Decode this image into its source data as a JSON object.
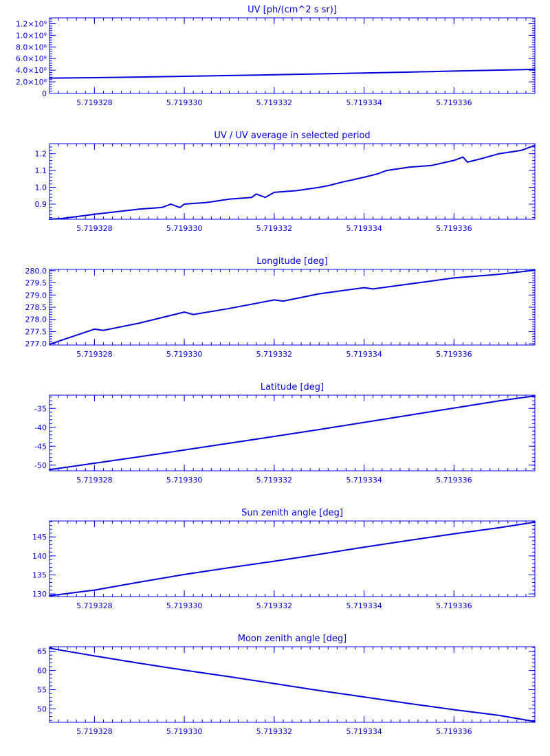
{
  "colors": {
    "ink": "#0000dd",
    "background": "#ffffff"
  },
  "chart_data": [
    {
      "type": "line",
      "title": "UV [ph/(cm^2 s sr)]",
      "xlim": [
        5.719327,
        5.7193378
      ],
      "ylim": [
        0,
        1300000000.0
      ],
      "xticks": [
        5.719328,
        5.71933,
        5.719332,
        5.719334,
        5.719336
      ],
      "xtick_labels": [
        "5.719328",
        "5.719330",
        "5.719332",
        "5.719334",
        "5.719336"
      ],
      "yticks": [
        0,
        200000000,
        400000000,
        600000000,
        800000000,
        1000000000,
        1200000000
      ],
      "ytick_labels": [
        "0",
        "2.0×10⁸",
        "4.0×10⁸",
        "6.0×10⁸",
        "8.0×10⁸",
        "1.0×10⁹",
        "1.2×10⁹"
      ],
      "x": [
        5.719327,
        5.719328,
        5.719329,
        5.71933,
        5.719331,
        5.719332,
        5.719333,
        5.719334,
        5.719335,
        5.719336,
        5.7193378
      ],
      "y": [
        265000000,
        272000000,
        283000000,
        295000000,
        308000000,
        322000000,
        337000000,
        352000000,
        368000000,
        385000000,
        415000000
      ]
    },
    {
      "type": "line",
      "title": "UV / UV average in selected period",
      "xlim": [
        5.719327,
        5.7193378
      ],
      "ylim": [
        0.81,
        1.26
      ],
      "xticks": [
        5.719328,
        5.71933,
        5.719332,
        5.719334,
        5.719336
      ],
      "xtick_labels": [
        "5.719328",
        "5.719330",
        "5.719332",
        "5.719334",
        "5.719336"
      ],
      "yticks": [
        0.9,
        1.0,
        1.1,
        1.2
      ],
      "ytick_labels": [
        "0.9",
        "1.0",
        "1.1",
        "1.2"
      ],
      "x": [
        5.719327,
        5.7193273,
        5.719328,
        5.7193285,
        5.719329,
        5.7193295,
        5.7193297,
        5.7193299,
        5.71933,
        5.7193305,
        5.719331,
        5.7193315,
        5.7193316,
        5.7193318,
        5.719332,
        5.7193325,
        5.719333,
        5.7193332,
        5.7193335,
        5.719334,
        5.7193343,
        5.7193345,
        5.719335,
        5.7193355,
        5.719336,
        5.7193362,
        5.7193363,
        5.7193366,
        5.719337,
        5.7193375,
        5.7193378
      ],
      "y": [
        0.81,
        0.815,
        0.84,
        0.855,
        0.87,
        0.88,
        0.9,
        0.88,
        0.9,
        0.91,
        0.93,
        0.94,
        0.96,
        0.94,
        0.97,
        0.98,
        1.0,
        1.01,
        1.03,
        1.06,
        1.08,
        1.1,
        1.12,
        1.13,
        1.16,
        1.18,
        1.15,
        1.17,
        1.2,
        1.22,
        1.25
      ]
    },
    {
      "type": "line",
      "title": "Longitude [deg]",
      "xlim": [
        5.719327,
        5.7193378
      ],
      "ylim": [
        276.95,
        280.05
      ],
      "xticks": [
        5.719328,
        5.71933,
        5.719332,
        5.719334,
        5.719336
      ],
      "xtick_labels": [
        "5.719328",
        "5.719330",
        "5.719332",
        "5.719334",
        "5.719336"
      ],
      "yticks": [
        277.0,
        277.5,
        278.0,
        278.5,
        279.0,
        279.5,
        280.0
      ],
      "ytick_labels": [
        "277.0",
        "277.5",
        "278.0",
        "278.5",
        "279.0",
        "279.5",
        "280.0"
      ],
      "x": [
        5.719327,
        5.719328,
        5.7193282,
        5.719329,
        5.71933,
        5.7193302,
        5.719331,
        5.719332,
        5.7193322,
        5.719333,
        5.719334,
        5.7193342,
        5.719335,
        5.719336,
        5.719337,
        5.7193378
      ],
      "y": [
        276.98,
        277.6,
        277.55,
        277.85,
        278.3,
        278.2,
        278.45,
        278.8,
        278.75,
        279.05,
        279.3,
        279.25,
        279.45,
        279.7,
        279.85,
        280.02
      ]
    },
    {
      "type": "line",
      "title": "Latitude [deg]",
      "xlim": [
        5.719327,
        5.7193378
      ],
      "ylim": [
        -51.5,
        -31.5
      ],
      "xticks": [
        5.719328,
        5.71933,
        5.719332,
        5.719334,
        5.719336
      ],
      "xtick_labels": [
        "5.719328",
        "5.719330",
        "5.719332",
        "5.719334",
        "5.719336"
      ],
      "yticks": [
        -50,
        -45,
        -40,
        -35
      ],
      "ytick_labels": [
        "-50",
        "-45",
        "-40",
        "-35"
      ],
      "x": [
        5.719327,
        5.719328,
        5.719329,
        5.71933,
        5.719331,
        5.719332,
        5.719333,
        5.719334,
        5.719335,
        5.719336,
        5.719337,
        5.7193378
      ],
      "y": [
        -51.2,
        -49.5,
        -47.8,
        -46.0,
        -44.2,
        -42.4,
        -40.6,
        -38.7,
        -36.8,
        -34.9,
        -33.0,
        -31.7
      ]
    },
    {
      "type": "line",
      "title": "Sun zenith angle [deg]",
      "xlim": [
        5.719327,
        5.7193378
      ],
      "ylim": [
        129.3,
        149.2
      ],
      "xticks": [
        5.719328,
        5.71933,
        5.719332,
        5.719334,
        5.719336
      ],
      "xtick_labels": [
        "5.719328",
        "5.719330",
        "5.719332",
        "5.719334",
        "5.719336"
      ],
      "yticks": [
        130,
        135,
        140,
        145
      ],
      "ytick_labels": [
        "130",
        "135",
        "140",
        "145"
      ],
      "x": [
        5.719327,
        5.719328,
        5.719329,
        5.71933,
        5.719331,
        5.719332,
        5.719333,
        5.719334,
        5.719335,
        5.719336,
        5.719337,
        5.7193378
      ],
      "y": [
        129.5,
        131.0,
        133.1,
        135.1,
        136.9,
        138.6,
        140.4,
        142.3,
        144.1,
        145.8,
        147.4,
        148.9
      ]
    },
    {
      "type": "line",
      "title": "Moon zenith angle [deg]",
      "xlim": [
        5.719327,
        5.7193378
      ],
      "ylim": [
        46.5,
        66.2
      ],
      "xticks": [
        5.719328,
        5.71933,
        5.719332,
        5.719334,
        5.719336
      ],
      "xtick_labels": [
        "5.719328",
        "5.719330",
        "5.719332",
        "5.719334",
        "5.719336"
      ],
      "yticks": [
        50,
        55,
        60,
        65
      ],
      "ytick_labels": [
        "50",
        "55",
        "60",
        "65"
      ],
      "x": [
        5.719327,
        5.719328,
        5.719329,
        5.71933,
        5.719331,
        5.719332,
        5.719333,
        5.719334,
        5.719335,
        5.719336,
        5.719337,
        5.7193378
      ],
      "y": [
        65.8,
        63.8,
        61.9,
        60.1,
        58.4,
        56.6,
        54.8,
        53.1,
        51.4,
        49.8,
        48.3,
        46.7
      ]
    }
  ]
}
